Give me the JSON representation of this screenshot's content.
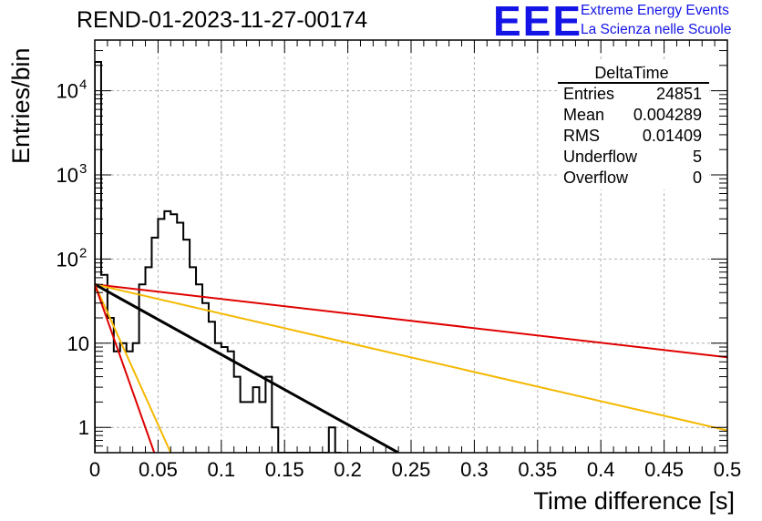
{
  "header": {
    "title": "REND-01-2023-11-27-00174",
    "logo_text": "EEE",
    "logo_line1": "Extreme Energy Events",
    "logo_line2": "La Scienza nelle Scuole"
  },
  "stats_box": {
    "name": "DeltaTime",
    "rows": [
      {
        "label": "Entries",
        "value": "24851"
      },
      {
        "label": "Mean",
        "value": "0.004289"
      },
      {
        "label": "RMS",
        "value": "0.01409"
      },
      {
        "label": "Underflow",
        "value": "5"
      },
      {
        "label": "Overflow",
        "value": "0"
      }
    ]
  },
  "chart_data": {
    "type": "histogram",
    "title": "REND-01-2023-11-27-00174",
    "xlabel": "Time difference [s]",
    "ylabel": "Entries/bin",
    "xlim": [
      0,
      0.5
    ],
    "ylim": [
      0.5,
      40000
    ],
    "y_scale": "log",
    "grid": true,
    "x_ticks": [
      "0",
      "0.05",
      "0.1",
      "0.15",
      "0.2",
      "0.25",
      "0.3",
      "0.35",
      "0.4",
      "0.45",
      "0.5"
    ],
    "y_ticks": [
      {
        "value": 1,
        "label": "1"
      },
      {
        "value": 10,
        "label": "10"
      },
      {
        "value": 100,
        "label": "10",
        "exp": "2"
      },
      {
        "value": 1000,
        "label": "10",
        "exp": "3"
      },
      {
        "value": 10000,
        "label": "10",
        "exp": "4"
      }
    ],
    "histogram": {
      "bin_width": 0.005,
      "x_start": 0,
      "counts": [
        22000,
        65,
        20,
        8,
        10,
        8,
        10,
        50,
        80,
        180,
        300,
        370,
        340,
        270,
        170,
        80,
        50,
        30,
        18,
        10,
        9,
        8,
        4,
        2,
        2,
        3,
        2,
        4,
        1,
        0,
        0,
        0,
        0,
        0,
        0,
        0,
        0,
        1,
        0
      ]
    },
    "series": [
      {
        "color": "#e00000",
        "x": [
          0,
          0.5
        ],
        "y": [
          50,
          6.8
        ]
      },
      {
        "color": "#f5b800",
        "x": [
          0,
          0.5
        ],
        "y": [
          50,
          0.92
        ]
      },
      {
        "color": "#000000",
        "x": [
          0,
          0.24
        ],
        "y": [
          50,
          0.5
        ]
      },
      {
        "color": "#f5b800",
        "x": [
          0,
          0.06
        ],
        "y": [
          50,
          0.5
        ]
      },
      {
        "color": "#e00000",
        "x": [
          0,
          0.047
        ],
        "y": [
          50,
          0.5
        ]
      }
    ]
  }
}
